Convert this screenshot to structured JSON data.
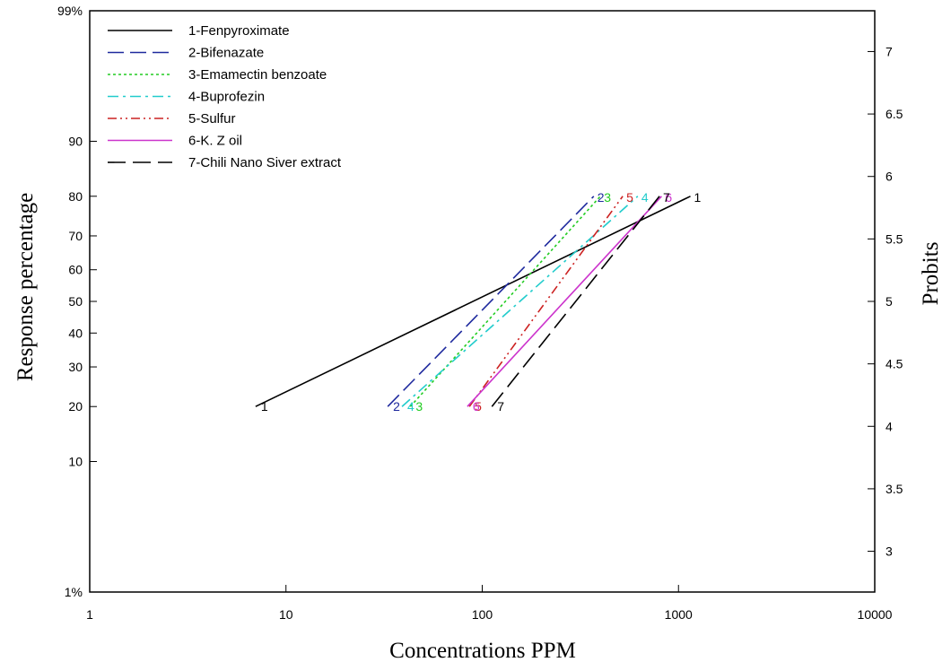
{
  "chart_data": {
    "type": "line",
    "xlabel": "Concentrations PPM",
    "ylabel": "Response percentage",
    "ylabel_right": "Probits",
    "x_scale": "log",
    "xlim": [
      1,
      10000
    ],
    "x_ticks": [
      1,
      10,
      100,
      1000,
      10000
    ],
    "x_tick_labels": [
      "1",
      "10",
      "100",
      "1000",
      "10000"
    ],
    "y_scale": "probit",
    "ylim_percent": [
      1,
      99
    ],
    "y_ticks": [
      1,
      10,
      20,
      30,
      40,
      50,
      60,
      70,
      80,
      90,
      99
    ],
    "y_tick_labels": [
      "1%",
      "10",
      "20",
      "30",
      "40",
      "50",
      "60",
      "70",
      "80",
      "90",
      "99%"
    ],
    "y_right_ticks": [
      3,
      3.5,
      4,
      4.5,
      5,
      5.5,
      6,
      6.5,
      7
    ],
    "y_right_tick_labels": [
      "3",
      "3.5",
      "4",
      "4.5",
      "5",
      "5.5",
      "6",
      "6.5",
      "7"
    ],
    "grid": false,
    "legend_position": "top-left",
    "series": [
      {
        "name": "1-Fenpyroximate",
        "label": "1",
        "color": "#000000",
        "dash": "solid",
        "points": [
          {
            "x": 7,
            "y": 20
          },
          {
            "x": 1150,
            "y": 80
          }
        ]
      },
      {
        "name": "2-Bifenazate",
        "label": "2",
        "color": "#1f2a9e",
        "dash": "long-dash",
        "points": [
          {
            "x": 33,
            "y": 20
          },
          {
            "x": 370,
            "y": 80
          }
        ]
      },
      {
        "name": "3-Emamectin benzoate",
        "label": "3",
        "color": "#22cc22",
        "dash": "dotted",
        "points": [
          {
            "x": 43,
            "y": 20
          },
          {
            "x": 400,
            "y": 80
          }
        ]
      },
      {
        "name": "4-Buprofezin",
        "label": "4",
        "color": "#22cccc",
        "dash": "dash-dot",
        "points": [
          {
            "x": 39,
            "y": 20
          },
          {
            "x": 620,
            "y": 80
          }
        ]
      },
      {
        "name": "5-Sulfur",
        "label": "5",
        "color": "#cc2222",
        "dash": "dash-dot-dot",
        "points": [
          {
            "x": 86,
            "y": 20
          },
          {
            "x": 520,
            "y": 80
          }
        ]
      },
      {
        "name": "6-K. Z oil",
        "label": "6",
        "color": "#cc33cc",
        "dash": "solid",
        "points": [
          {
            "x": 84,
            "y": 20
          },
          {
            "x": 820,
            "y": 80
          }
        ]
      },
      {
        "name": "7-Chili Nano Siver extract",
        "label": "7",
        "color": "#000000",
        "dash": "long-dash-2",
        "points": [
          {
            "x": 112,
            "y": 20
          },
          {
            "x": 800,
            "y": 80
          }
        ]
      }
    ]
  }
}
